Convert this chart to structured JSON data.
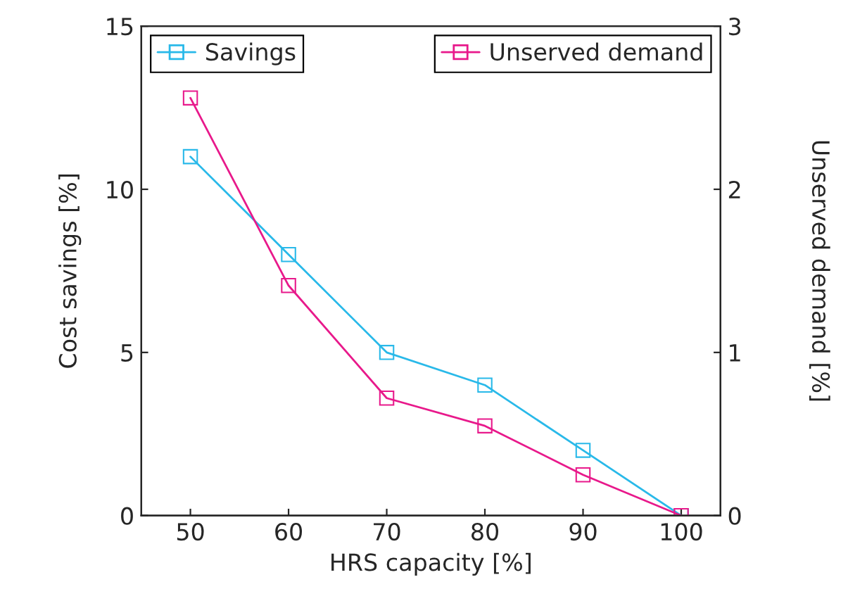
{
  "chart_data": {
    "type": "line",
    "xlabel": "HRS capacity [%]",
    "ylabel": "Cost savings [%]",
    "y2label": "Unserved demand [%]",
    "x": [
      50,
      60,
      70,
      80,
      90,
      100
    ],
    "series": [
      {
        "name": "Savings",
        "color": "#29b9e9",
        "values": [
          11,
          8,
          5,
          4,
          2,
          0
        ]
      },
      {
        "name": "Unserved demand",
        "color": "#e8198b",
        "axis": "y2",
        "values": [
          2.56,
          1.41,
          0.72,
          0.55,
          0.25,
          0
        ]
      }
    ],
    "xlim": [
      45,
      104
    ],
    "xticks": [
      50,
      60,
      70,
      80,
      90,
      100
    ],
    "ylim": [
      0,
      15
    ],
    "yticks": [
      0,
      5,
      10,
      15
    ],
    "y2lim": [
      0,
      3
    ],
    "y2ticks": [
      0,
      1,
      2,
      3
    ],
    "marker": "square",
    "line_style": "solid",
    "grid": false,
    "legend": "top"
  }
}
